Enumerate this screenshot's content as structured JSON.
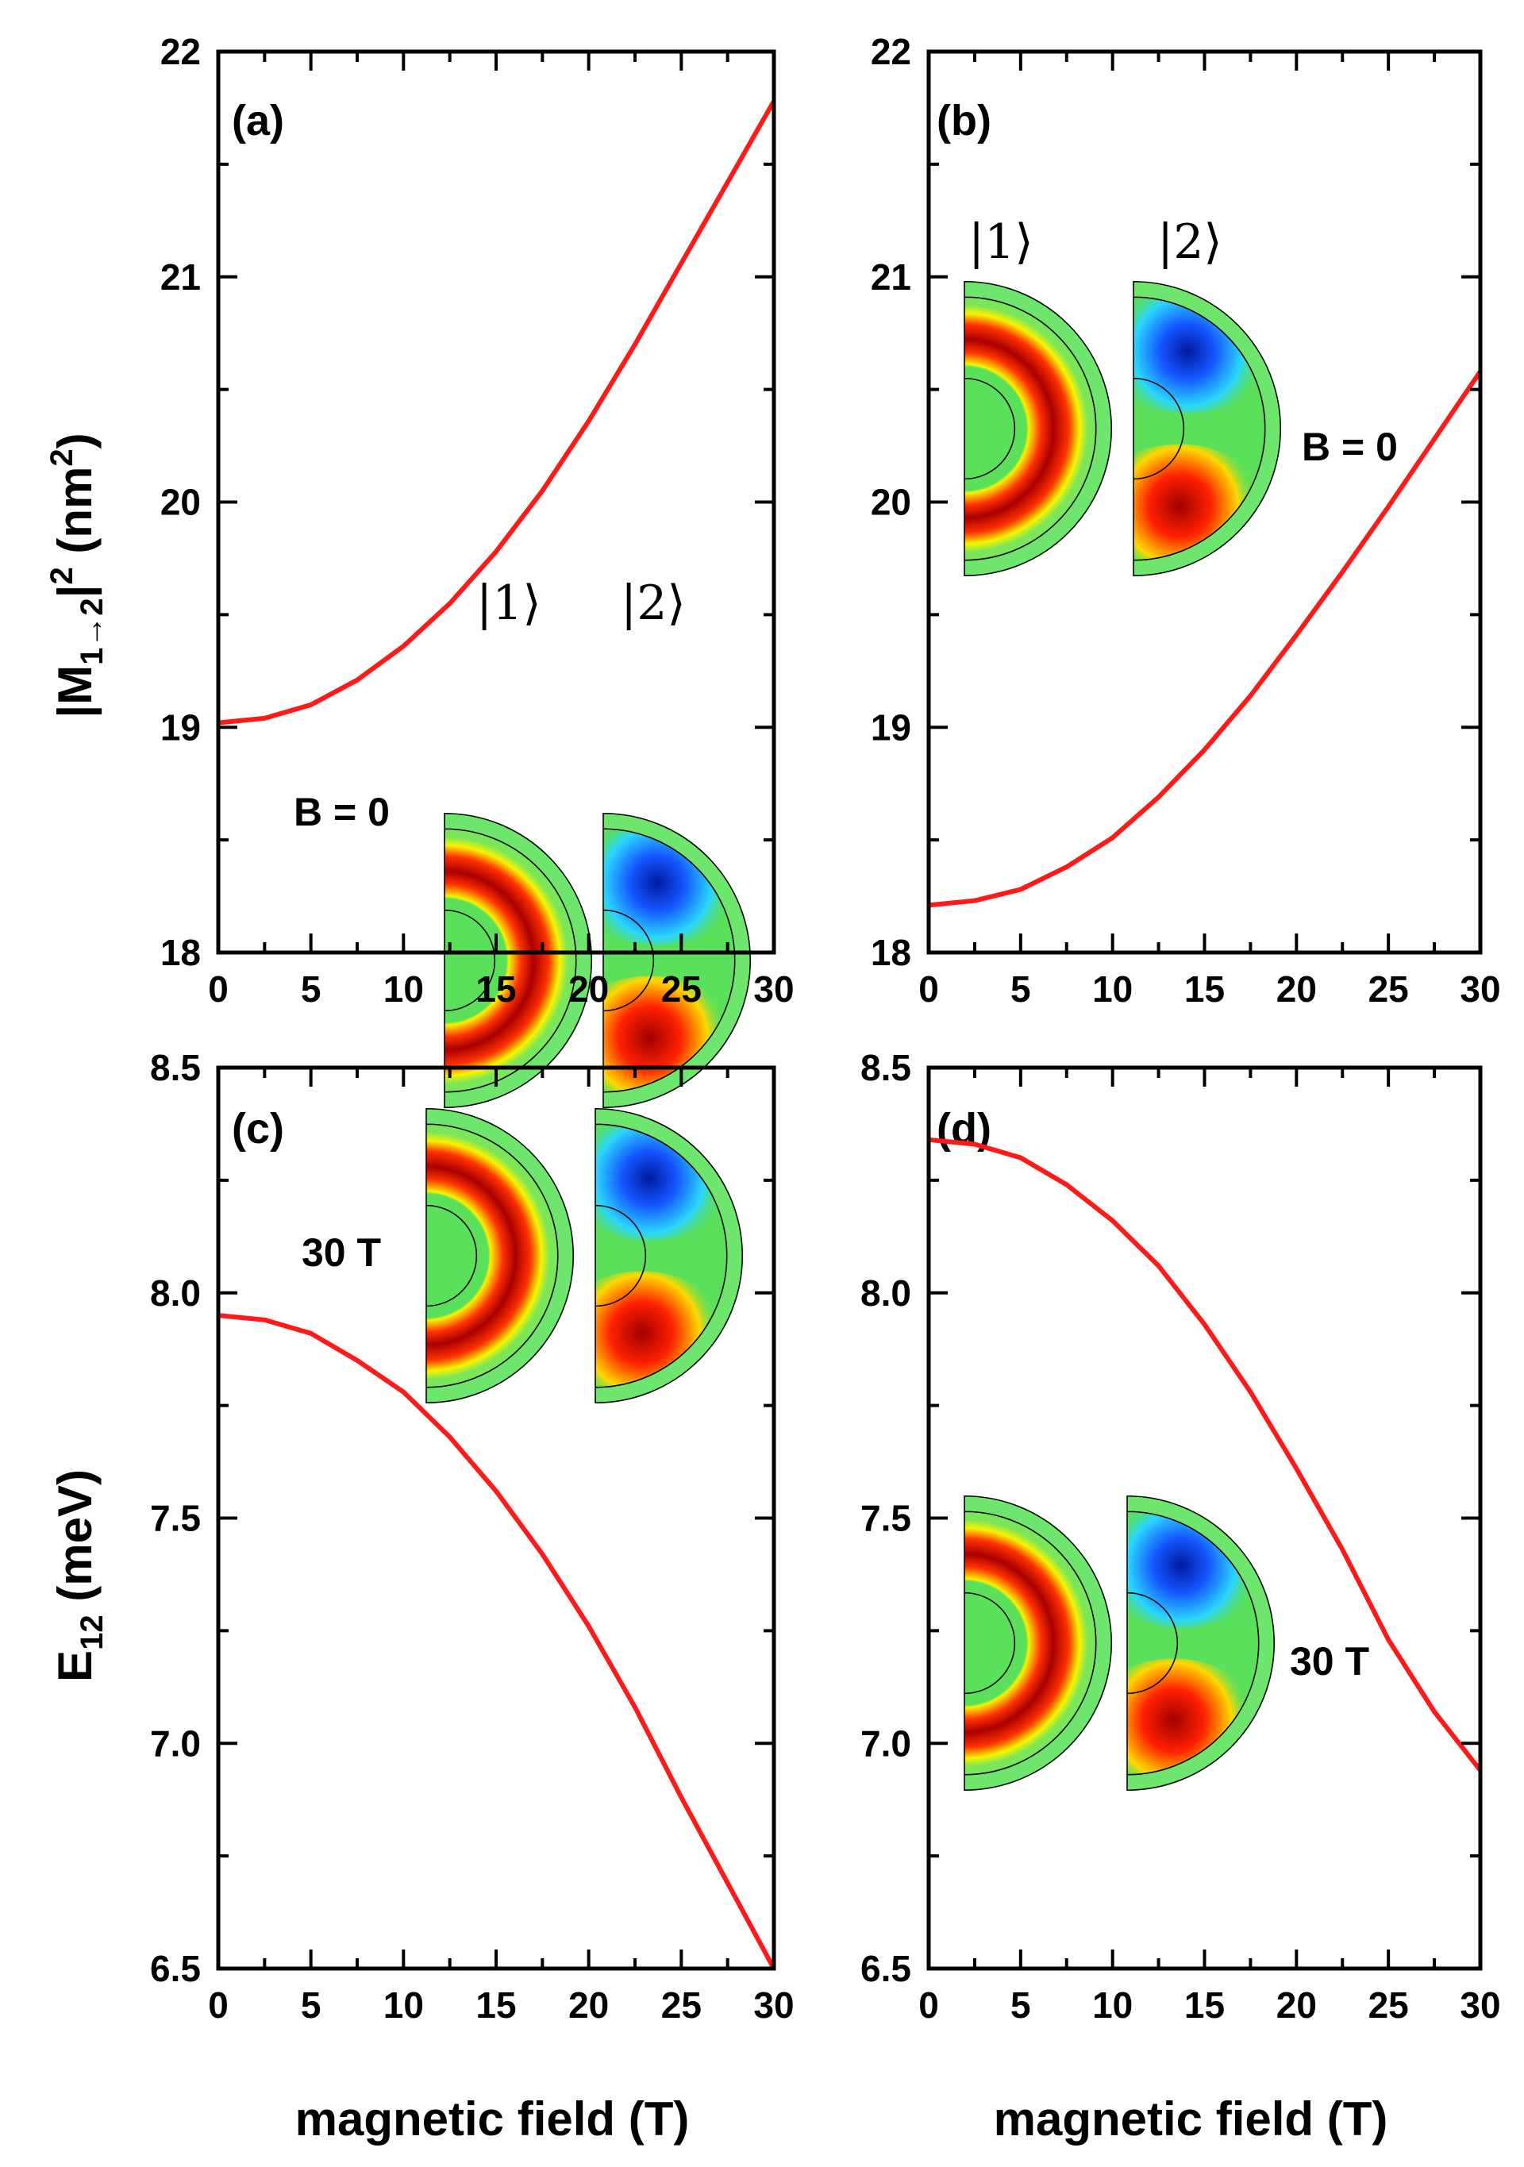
{
  "chart_data": [
    {
      "id": "a",
      "type": "line",
      "panel_label": "(a)",
      "xlabel": "",
      "ylabel": "|M1→2|² (nm²)",
      "xlim": [
        0,
        30
      ],
      "ylim": [
        18,
        22
      ],
      "xticks": [
        0,
        5,
        10,
        15,
        20,
        25,
        30
      ],
      "yticks": [
        18,
        19,
        20,
        21,
        22
      ],
      "ytick_labels": [
        "18",
        "19",
        "20",
        "21",
        "22"
      ],
      "series": [
        {
          "name": "|M1→2|²",
          "color": "#ff1a1a",
          "x": [
            0,
            2.5,
            5,
            7.5,
            10,
            12.5,
            15,
            17.5,
            20,
            22.5,
            25,
            27.5,
            30
          ],
          "y": [
            19.02,
            19.04,
            19.1,
            19.21,
            19.36,
            19.55,
            19.78,
            20.05,
            20.36,
            20.7,
            21.06,
            21.42,
            21.78
          ]
        }
      ],
      "inset": {
        "field_label": "B = 0",
        "state1": "|1⟩",
        "state2": "|2⟩"
      }
    },
    {
      "id": "b",
      "type": "line",
      "panel_label": "(b)",
      "xlabel": "",
      "ylabel": "",
      "xlim": [
        0,
        30
      ],
      "ylim": [
        18,
        22
      ],
      "xticks": [
        0,
        5,
        10,
        15,
        20,
        25,
        30
      ],
      "yticks": [
        18,
        19,
        20,
        21,
        22
      ],
      "ytick_labels": [
        "18",
        "19",
        "20",
        "21",
        "22"
      ],
      "series": [
        {
          "name": "|M1→2|²",
          "color": "#ff1a1a",
          "x": [
            0,
            2.5,
            5,
            7.5,
            10,
            12.5,
            15,
            17.5,
            20,
            22.5,
            25,
            27.5,
            30
          ],
          "y": [
            18.21,
            18.23,
            18.28,
            18.38,
            18.51,
            18.69,
            18.9,
            19.14,
            19.41,
            19.69,
            19.98,
            20.28,
            20.58
          ]
        }
      ],
      "inset": {
        "field_label": "B = 0",
        "state1": "|1⟩",
        "state2": "|2⟩"
      }
    },
    {
      "id": "c",
      "type": "line",
      "panel_label": "(c)",
      "xlabel": "magnetic field (T)",
      "ylabel": "E12 (meV)",
      "xlim": [
        0,
        30
      ],
      "ylim": [
        6.5,
        8.5
      ],
      "xticks": [
        0,
        5,
        10,
        15,
        20,
        25,
        30
      ],
      "yticks": [
        6.5,
        7.0,
        7.5,
        8.0,
        8.5
      ],
      "ytick_labels": [
        "6.5",
        "7.0",
        "7.5",
        "8.0",
        "8.5"
      ],
      "series": [
        {
          "name": "E12",
          "color": "#ff1a1a",
          "x": [
            0,
            2.5,
            5,
            7.5,
            10,
            12.5,
            15,
            17.5,
            20,
            22.5,
            25,
            27.5,
            30
          ],
          "y": [
            7.95,
            7.94,
            7.91,
            7.85,
            7.78,
            7.68,
            7.56,
            7.42,
            7.26,
            7.08,
            6.88,
            6.69,
            6.5
          ]
        }
      ],
      "inset": {
        "field_label": "30 T"
      }
    },
    {
      "id": "d",
      "type": "line",
      "panel_label": "(d)",
      "xlabel": "magnetic field (T)",
      "ylabel": "",
      "xlim": [
        0,
        30
      ],
      "ylim": [
        6.5,
        8.5
      ],
      "xticks": [
        0,
        5,
        10,
        15,
        20,
        25,
        30
      ],
      "yticks": [
        6.5,
        7.0,
        7.5,
        8.0,
        8.5
      ],
      "ytick_labels": [
        "6.5",
        "7.0",
        "7.5",
        "8.0",
        "8.5"
      ],
      "series": [
        {
          "name": "E12",
          "color": "#ff1a1a",
          "x": [
            0,
            2.5,
            5,
            7.5,
            10,
            12.5,
            15,
            17.5,
            20,
            22.5,
            25,
            27.5,
            30
          ],
          "y": [
            8.34,
            8.33,
            8.3,
            8.24,
            8.16,
            8.06,
            7.93,
            7.78,
            7.61,
            7.43,
            7.23,
            7.07,
            6.94
          ]
        }
      ],
      "inset": {
        "field_label": "30 T"
      }
    }
  ]
}
